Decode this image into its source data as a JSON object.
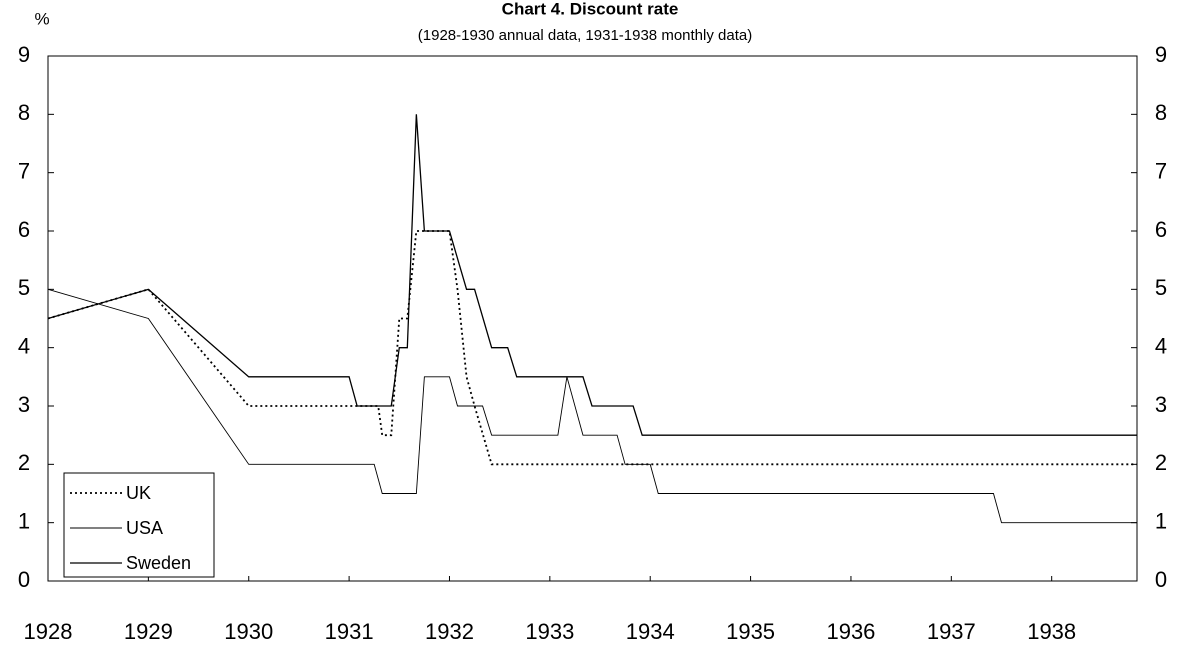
{
  "chart_data": {
    "type": "line",
    "title": "Chart 4. Discount rate",
    "subtitle": "(1928-1930 annual data, 1931-1938 monthly data)",
    "y_label": "%",
    "xlim": [
      1928,
      1938.85
    ],
    "xticks": [
      1928,
      1929,
      1930,
      1931,
      1932,
      1933,
      1934,
      1935,
      1936,
      1937,
      1938
    ],
    "ylim": [
      0,
      9
    ],
    "yticks": [
      0,
      1,
      2,
      3,
      4,
      5,
      6,
      7,
      8,
      9
    ],
    "y2lim": [
      0,
      9
    ],
    "y2ticks": [
      0,
      1,
      2,
      3,
      4,
      5,
      6,
      7,
      8,
      9
    ],
    "legend": "bottom-left",
    "series": [
      {
        "name": "UK",
        "color": "#000000",
        "style": "dotted",
        "x": [
          1928,
          1929,
          1930,
          1931.29,
          1931.33,
          1931.42,
          1931.5,
          1931.58,
          1931.67,
          1932,
          1932.08,
          1932.17,
          1932.25,
          1932.42,
          1938.85
        ],
        "values": [
          4.5,
          5,
          3,
          3,
          2.5,
          2.5,
          4.5,
          4.5,
          6,
          6,
          5,
          3.5,
          3,
          2,
          2
        ]
      },
      {
        "name": "USA",
        "color": "#000000",
        "style": "thin",
        "x": [
          1928,
          1929,
          1930,
          1931.25,
          1931.33,
          1931.67,
          1931.75,
          1932,
          1932.08,
          1932.33,
          1932.42,
          1933.08,
          1933.17,
          1933.33,
          1933.67,
          1933.75,
          1934,
          1934.08,
          1937.42,
          1937.5,
          1938.85
        ],
        "values": [
          5,
          4.5,
          2,
          2,
          1.5,
          1.5,
          3.5,
          3.5,
          3,
          3,
          2.5,
          2.5,
          3.5,
          2.5,
          2.5,
          2,
          2,
          1.5,
          1.5,
          1,
          1
        ]
      },
      {
        "name": "Sweden",
        "color": "#000000",
        "style": "solid",
        "x": [
          1928,
          1929,
          1930,
          1931,
          1931.08,
          1931.42,
          1931.5,
          1931.58,
          1931.67,
          1931.75,
          1932,
          1932.17,
          1932.25,
          1932.42,
          1932.58,
          1932.67,
          1933.33,
          1933.42,
          1933.83,
          1933.92,
          1938.85
        ],
        "values": [
          4.5,
          5,
          3.5,
          3.5,
          3,
          3,
          4,
          4,
          8,
          6,
          6,
          5,
          5,
          4,
          4,
          3.5,
          3.5,
          3,
          3,
          2.5,
          2.5
        ]
      }
    ]
  }
}
